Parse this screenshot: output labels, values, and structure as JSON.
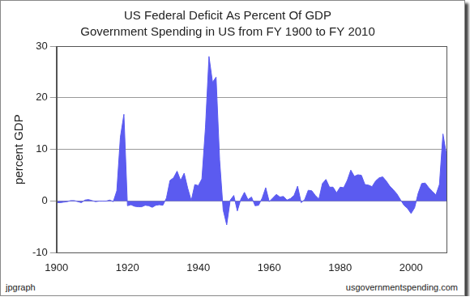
{
  "chart_data": {
    "type": "area",
    "title": "US Federal Deficit As Percent Of GDP",
    "subtitle": "Government Spending in US from FY 1900 to FY 2010",
    "y_label": "percent GDP",
    "annotations": [
      "jpgraph",
      "usgovernmentspending.com"
    ],
    "x": [
      1900,
      1901,
      1902,
      1903,
      1904,
      1905,
      1906,
      1907,
      1908,
      1909,
      1910,
      1911,
      1912,
      1913,
      1914,
      1915,
      1916,
      1917,
      1918,
      1919,
      1920,
      1921,
      1922,
      1923,
      1924,
      1925,
      1926,
      1927,
      1928,
      1929,
      1930,
      1931,
      1932,
      1933,
      1934,
      1935,
      1936,
      1937,
      1938,
      1939,
      1940,
      1941,
      1942,
      1943,
      1944,
      1945,
      1946,
      1947,
      1948,
      1949,
      1950,
      1951,
      1952,
      1953,
      1954,
      1955,
      1956,
      1957,
      1958,
      1959,
      1960,
      1961,
      1962,
      1963,
      1964,
      1965,
      1966,
      1967,
      1968,
      1969,
      1970,
      1971,
      1972,
      1973,
      1974,
      1975,
      1976,
      1977,
      1978,
      1979,
      1980,
      1981,
      1982,
      1983,
      1984,
      1985,
      1986,
      1987,
      1988,
      1989,
      1990,
      1991,
      1992,
      1993,
      1994,
      1995,
      1996,
      1997,
      1998,
      1999,
      2000,
      2001,
      2002,
      2003,
      2004,
      2005,
      2006,
      2007,
      2008,
      2009,
      2010
    ],
    "values": [
      -0.3,
      -0.3,
      -0.2,
      -0.1,
      0.1,
      0.1,
      -0.1,
      -0.3,
      0.2,
      0.3,
      0.1,
      -0.1,
      0,
      0,
      0,
      0.2,
      -0.1,
      2.0,
      12.4,
      16.8,
      -0.9,
      -0.7,
      -1.0,
      -1.1,
      -1.1,
      -0.8,
      -0.9,
      -1.2,
      -0.8,
      -0.7,
      -0.8,
      0.6,
      4.0,
      4.5,
      5.8,
      4.0,
      5.4,
      2.5,
      0.1,
      3.2,
      3.0,
      4.3,
      14.2,
      28.0,
      23.0,
      24.0,
      8.0,
      -1.7,
      -4.6,
      0.2,
      1.1,
      -1.9,
      0.4,
      1.7,
      0.3,
      0.8,
      -0.9,
      -0.8,
      0.6,
      2.6,
      -0.1,
      0.6,
      1.3,
      0.8,
      0.9,
      0.2,
      0.5,
      1.1,
      2.9,
      -0.3,
      0.3,
      2.1,
      2.0,
      1.1,
      0.4,
      3.4,
      4.2,
      2.7,
      2.7,
      1.6,
      2.7,
      2.6,
      4.0,
      6.0,
      4.8,
      5.1,
      5.0,
      3.2,
      3.1,
      2.8,
      3.9,
      4.5,
      4.7,
      3.9,
      2.9,
      2.2,
      1.4,
      0.3,
      -0.8,
      -1.4,
      -2.4,
      -1.3,
      1.5,
      3.4,
      3.5,
      2.6,
      1.9,
      1.2,
      3.2,
      13.0,
      9.0
    ],
    "color": "#5b5bf0",
    "xlim": [
      1900,
      2010
    ],
    "xticks": [
      1900,
      1920,
      1940,
      1960,
      1980,
      2000
    ],
    "ylim": [
      -10,
      30
    ],
    "yticks": [
      -10,
      0,
      10,
      20,
      30
    ],
    "grid": true
  }
}
